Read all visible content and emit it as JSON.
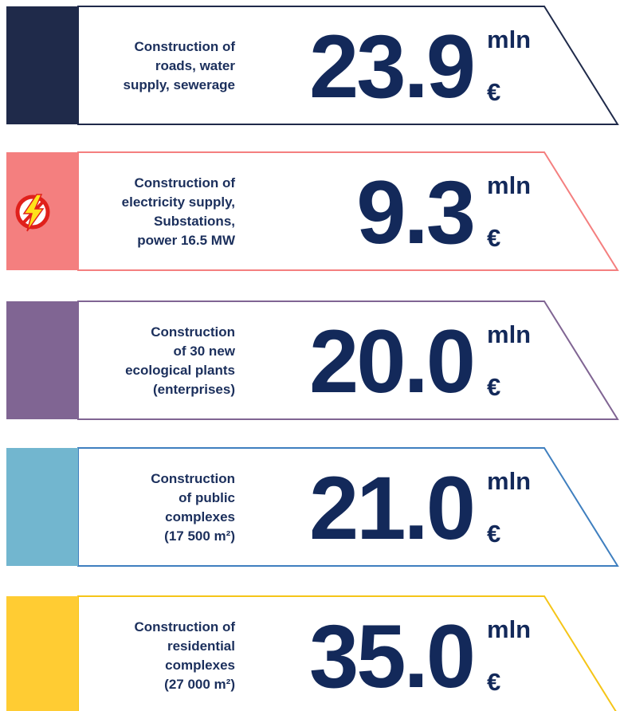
{
  "items": [
    {
      "description": [
        "Construction of",
        "roads, water",
        "supply, sewerage"
      ],
      "amount": "23.9",
      "unit": "mln",
      "currency": "€"
    },
    {
      "description": [
        "Construction of",
        "electricity supply,",
        "Substations,",
        "power 16.5 MW"
      ],
      "amount": "9.3",
      "unit": "mln",
      "currency": "€"
    },
    {
      "description": [
        "Construction",
        "of 30 new",
        "ecological plants",
        "(enterprises)"
      ],
      "amount": "20.0",
      "unit": "mln",
      "currency": "€"
    },
    {
      "description": [
        "Construction",
        "of public",
        "complexes",
        "(17 500 m²)"
      ],
      "amount": "21.0",
      "unit": "mln",
      "currency": "€"
    },
    {
      "description": [
        "Construction of",
        "residential",
        "complexes",
        "(27 000 m²)"
      ],
      "amount": "35.0",
      "unit": "mln",
      "currency": "€"
    }
  ]
}
